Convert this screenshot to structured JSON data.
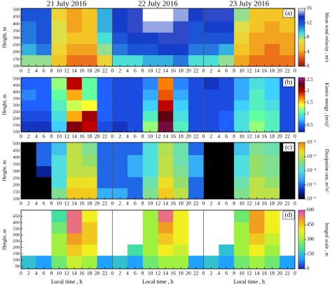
{
  "chart_data": [
    {
      "type": "heatmap",
      "panel_label": "(a)",
      "day_labels": [
        "21 July 2016",
        "22 July 2016",
        "23 July 2016"
      ],
      "ylabel": "Height, m",
      "zlabel": "Mean wind velocity , m/s",
      "xlim": [
        0,
        72
      ],
      "xticks": [
        0,
        2,
        4,
        6,
        8,
        10,
        12,
        14,
        16,
        18,
        20,
        22,
        {
          "value": 24,
          "label": "0"
        },
        {
          "value": 26,
          "label": "2"
        },
        {
          "value": 28,
          "label": "4"
        },
        {
          "value": 30,
          "label": "6"
        },
        {
          "value": 32,
          "label": "8"
        },
        {
          "value": 34,
          "label": "10"
        },
        {
          "value": 36,
          "label": "12"
        },
        {
          "value": 38,
          "label": "14"
        },
        {
          "value": 40,
          "label": "16"
        },
        {
          "value": 42,
          "label": "18"
        },
        {
          "value": 44,
          "label": "20"
        },
        {
          "value": 46,
          "label": "22"
        },
        {
          "value": 48,
          "label": "0"
        },
        {
          "value": 50,
          "label": "2"
        },
        {
          "value": 52,
          "label": "4"
        },
        {
          "value": 54,
          "label": "6"
        },
        {
          "value": 56,
          "label": "8"
        },
        {
          "value": 58,
          "label": "10"
        },
        {
          "value": 60,
          "label": "12"
        },
        {
          "value": 62,
          "label": "14"
        },
        {
          "value": 64,
          "label": "16"
        },
        {
          "value": 66,
          "label": "18"
        },
        {
          "value": 68,
          "label": "20"
        },
        {
          "value": 70,
          "label": "22"
        },
        {
          "value": 72,
          "label": "0"
        }
      ],
      "ylim": [
        100,
        510
      ],
      "yticks": [
        100,
        150,
        200,
        250,
        300,
        350,
        400,
        450,
        500
      ],
      "x": [
        2,
        6,
        10,
        14,
        18,
        22,
        26,
        30,
        34,
        38,
        42,
        46,
        50,
        54,
        58,
        62,
        66,
        70
      ],
      "y": [
        140,
        220,
        300,
        380,
        460
      ],
      "z": [
        [
          8,
          8,
          5,
          3,
          3,
          6,
          9,
          9,
          10,
          10,
          11,
          9,
          9,
          8,
          4,
          3,
          3,
          3
        ],
        [
          10,
          11,
          6,
          4,
          4,
          8,
          11,
          12,
          12,
          13,
          13,
          11,
          11,
          10,
          5,
          4,
          3,
          4
        ],
        [
          11,
          12,
          7,
          5,
          5,
          9,
          12,
          13,
          13,
          14,
          14,
          12,
          12,
          12,
          6,
          4,
          4,
          4
        ],
        [
          11,
          12,
          7,
          4,
          5,
          10,
          13,
          14,
          15,
          15,
          14,
          12,
          13,
          13,
          7,
          5,
          4,
          5
        ],
        [
          12,
          12,
          6,
          4,
          5,
          10,
          13,
          14,
          16,
          16,
          15,
          13,
          14,
          14,
          8,
          5,
          5,
          5
        ]
      ],
      "zlim": [
        0,
        16
      ],
      "zticks": [
        0,
        4,
        8,
        12,
        16
      ],
      "zscale": "linear",
      "colors": [
        "#8b1a00",
        "#e8501a",
        "#f5c020",
        "#e8e040",
        "#40e0e0",
        "#2060e0",
        "#1030c0",
        "#ffffff"
      ]
    },
    {
      "type": "heatmap",
      "panel_label": "(b)",
      "ylabel": "Height, m",
      "zlabel": "Kinetic energy , (m/s)²",
      "xlim": [
        0,
        72
      ],
      "xticks": [
        0,
        2,
        4,
        6,
        8,
        10,
        12,
        14,
        16,
        18,
        20,
        22,
        {
          "value": 24,
          "label": "0"
        },
        {
          "value": 26,
          "label": "2"
        },
        {
          "value": 28,
          "label": "4"
        },
        {
          "value": 30,
          "label": "6"
        },
        {
          "value": 32,
          "label": "8"
        },
        {
          "value": 34,
          "label": "10"
        },
        {
          "value": 36,
          "label": "12"
        },
        {
          "value": 38,
          "label": "14"
        },
        {
          "value": 40,
          "label": "16"
        },
        {
          "value": 42,
          "label": "18"
        },
        {
          "value": 44,
          "label": "20"
        },
        {
          "value": 46,
          "label": "22"
        },
        {
          "value": 48,
          "label": "0"
        },
        {
          "value": 50,
          "label": "2"
        },
        {
          "value": 52,
          "label": "4"
        },
        {
          "value": 54,
          "label": "6"
        },
        {
          "value": 56,
          "label": "8"
        },
        {
          "value": 58,
          "label": "10"
        },
        {
          "value": 60,
          "label": "12"
        },
        {
          "value": 62,
          "label": "14"
        },
        {
          "value": 64,
          "label": "16"
        },
        {
          "value": 66,
          "label": "18"
        },
        {
          "value": 68,
          "label": "20"
        },
        {
          "value": 70,
          "label": "22"
        },
        {
          "value": 72,
          "label": "0"
        }
      ],
      "ylim": [
        100,
        510
      ],
      "yticks": [
        100,
        150,
        200,
        250,
        300,
        350,
        400,
        450,
        500
      ],
      "x": [
        2,
        6,
        10,
        14,
        18,
        22,
        26,
        30,
        34,
        38,
        42,
        46,
        50,
        54,
        58,
        62,
        66,
        70
      ],
      "y": [
        140,
        220,
        300,
        380,
        460
      ],
      "z": [
        [
          0.3,
          0.3,
          0.8,
          2.2,
          2.0,
          0.4,
          0.3,
          0.4,
          1.2,
          2.4,
          1.0,
          0.4,
          0.4,
          0.5,
          0.9,
          1.2,
          1.0,
          0.4
        ],
        [
          0.4,
          0.4,
          0.9,
          1.6,
          2.1,
          0.5,
          0.4,
          0.4,
          1.0,
          2.3,
          0.9,
          0.4,
          0.4,
          0.5,
          0.9,
          1.1,
          1.0,
          0.4
        ],
        [
          0.5,
          0.5,
          1.0,
          1.3,
          1.4,
          0.5,
          0.4,
          0.4,
          0.8,
          2.0,
          0.8,
          0.4,
          0.4,
          0.4,
          0.8,
          1.0,
          0.9,
          0.4
        ],
        [
          0.6,
          0.5,
          1.1,
          1.6,
          1.1,
          0.5,
          0.4,
          0.4,
          0.7,
          1.8,
          0.7,
          0.4,
          0.4,
          0.4,
          0.7,
          1.0,
          0.8,
          0.4
        ],
        [
          0.5,
          0.5,
          1.2,
          2.0,
          1.1,
          0.5,
          0.4,
          0.4,
          0.6,
          1.7,
          0.6,
          0.4,
          0.3,
          0.4,
          0.7,
          0.9,
          0.8,
          0.4
        ]
      ],
      "zlim": [
        0.2,
        2.6
      ],
      "zticks": [
        0.5,
        1,
        1.5,
        2,
        2.5
      ],
      "zscale": "linear",
      "colors": [
        "#1020a0",
        "#2060ff",
        "#40d0ff",
        "#60ffa0",
        "#ffff30",
        "#ff8000",
        "#c00000",
        "#600010",
        "#a020a0"
      ]
    },
    {
      "type": "heatmap",
      "panel_label": "(c)",
      "ylabel": "Height, m",
      "zlabel": "Dissipation rate, m²/s³",
      "xlim": [
        0,
        72
      ],
      "xticks": [
        0,
        2,
        4,
        6,
        8,
        10,
        12,
        14,
        16,
        18,
        20,
        22,
        {
          "value": 24,
          "label": "0"
        },
        {
          "value": 26,
          "label": "2"
        },
        {
          "value": 28,
          "label": "4"
        },
        {
          "value": 30,
          "label": "6"
        },
        {
          "value": 32,
          "label": "8"
        },
        {
          "value": 34,
          "label": "10"
        },
        {
          "value": 36,
          "label": "12"
        },
        {
          "value": 38,
          "label": "14"
        },
        {
          "value": 40,
          "label": "16"
        },
        {
          "value": 42,
          "label": "18"
        },
        {
          "value": 44,
          "label": "20"
        },
        {
          "value": 46,
          "label": "22"
        },
        {
          "value": 48,
          "label": "0"
        },
        {
          "value": 50,
          "label": "2"
        },
        {
          "value": 52,
          "label": "4"
        },
        {
          "value": 54,
          "label": "6"
        },
        {
          "value": 56,
          "label": "8"
        },
        {
          "value": 58,
          "label": "10"
        },
        {
          "value": 60,
          "label": "12"
        },
        {
          "value": 62,
          "label": "14"
        },
        {
          "value": 64,
          "label": "16"
        },
        {
          "value": 66,
          "label": "18"
        },
        {
          "value": 68,
          "label": "20"
        },
        {
          "value": 70,
          "label": "22"
        },
        {
          "value": 72,
          "label": "0"
        }
      ],
      "ylim": [
        100,
        510
      ],
      "yticks": [
        100,
        150,
        200,
        250,
        300,
        350,
        400,
        450,
        500
      ],
      "x": [
        2,
        6,
        10,
        14,
        18,
        22,
        26,
        30,
        34,
        38,
        42,
        46,
        50,
        54,
        58,
        62,
        66,
        70
      ],
      "y": [
        140,
        220,
        300,
        380,
        460
      ],
      "z": [
        [
          1e-06,
          1e-06,
          0.0003,
          0.003,
          0.003,
          3e-05,
          3e-05,
          1e-05,
          0.0003,
          0.003,
          0.001,
          1e-05,
          1e-06,
          1e-06,
          0.0003,
          0.001,
          0.001,
          1e-06
        ],
        [
          1e-06,
          1e-06,
          0.0001,
          0.002,
          0.002,
          1e-05,
          1e-05,
          1e-05,
          0.0002,
          0.002,
          0.0005,
          1e-05,
          1e-06,
          1e-06,
          0.0002,
          0.001,
          0.0005,
          1e-06
        ],
        [
          1e-06,
          3e-06,
          0.0001,
          0.001,
          0.001,
          1e-05,
          1e-05,
          3e-05,
          0.0001,
          0.001,
          0.0003,
          3e-05,
          1e-06,
          1e-06,
          0.0001,
          0.0005,
          0.0003,
          1e-06
        ],
        [
          1e-06,
          1e-05,
          0.0001,
          0.001,
          0.0005,
          1e-05,
          1e-05,
          3e-05,
          0.0001,
          0.001,
          0.0002,
          3e-05,
          1e-06,
          1e-06,
          0.0001,
          0.0005,
          0.0003,
          1e-06
        ],
        [
          1e-06,
          1e-05,
          5e-05,
          0.001,
          0.0003,
          1e-05,
          1e-05,
          1e-05,
          0.0001,
          0.0008,
          0.0002,
          1e-05,
          1e-06,
          1e-06,
          5e-05,
          0.0003,
          0.0002,
          1e-06
        ]
      ],
      "zlim": [
        1e-06,
        0.01
      ],
      "zticks": [
        {
          "value": 1e-06,
          "label": "10⁻⁶"
        },
        {
          "value": 1e-05,
          "label": "10⁻⁵"
        },
        {
          "value": 0.0001,
          "label": "10⁻⁴"
        },
        {
          "value": 0.001,
          "label": "10⁻³"
        },
        {
          "value": 0.01,
          "label": "10⁻²"
        }
      ],
      "zscale": "log",
      "colors": [
        "#000000",
        "#1030d0",
        "#30a0ff",
        "#50e0e0",
        "#90e070",
        "#f0e020",
        "#f08010"
      ]
    },
    {
      "type": "heatmap",
      "panel_label": "(d)",
      "ylabel": "Height, m",
      "zlabel": "Integral scale , m",
      "xlabel": "Local time , h",
      "xlim": [
        0,
        72
      ],
      "xticks": [
        0,
        2,
        4,
        6,
        8,
        10,
        12,
        14,
        16,
        18,
        20,
        22,
        {
          "value": 24,
          "label": "0"
        },
        {
          "value": 26,
          "label": "2"
        },
        {
          "value": 28,
          "label": "4"
        },
        {
          "value": 30,
          "label": "6"
        },
        {
          "value": 32,
          "label": "8"
        },
        {
          "value": 34,
          "label": "10"
        },
        {
          "value": 36,
          "label": "12"
        },
        {
          "value": 38,
          "label": "14"
        },
        {
          "value": 40,
          "label": "16"
        },
        {
          "value": 42,
          "label": "18"
        },
        {
          "value": 44,
          "label": "20"
        },
        {
          "value": 46,
          "label": "22"
        },
        {
          "value": 48,
          "label": "0"
        },
        {
          "value": 50,
          "label": "2"
        },
        {
          "value": 52,
          "label": "4"
        },
        {
          "value": 54,
          "label": "6"
        },
        {
          "value": 56,
          "label": "8"
        },
        {
          "value": 58,
          "label": "10"
        },
        {
          "value": 60,
          "label": "12"
        },
        {
          "value": 62,
          "label": "14"
        },
        {
          "value": 64,
          "label": "16"
        },
        {
          "value": 66,
          "label": "18"
        },
        {
          "value": 68,
          "label": "20"
        },
        {
          "value": 70,
          "label": "22"
        },
        {
          "value": 72,
          "label": "0"
        }
      ],
      "ylim": [
        30,
        500
      ],
      "yticks": [
        50,
        100,
        150,
        200,
        250,
        300,
        350,
        400,
        450
      ],
      "x": [
        2,
        6,
        10,
        14,
        18,
        22,
        26,
        30,
        34,
        38,
        42,
        46,
        50,
        54,
        58,
        62,
        66,
        70
      ],
      "y": [
        90,
        180,
        270,
        360,
        450
      ],
      "z": [
        [
          150,
          100,
          250,
          350,
          300,
          100,
          150,
          100,
          250,
          300,
          300,
          100,
          150,
          100,
          250,
          300,
          250,
          100
        ],
        [
          null,
          null,
          300,
          450,
          400,
          null,
          null,
          200,
          300,
          400,
          350,
          null,
          null,
          150,
          300,
          400,
          300,
          null
        ],
        [
          null,
          null,
          300,
          500,
          450,
          null,
          null,
          null,
          300,
          450,
          400,
          null,
          null,
          null,
          300,
          450,
          350,
          null
        ],
        [
          null,
          null,
          250,
          550,
          450,
          null,
          null,
          null,
          300,
          500,
          400,
          null,
          null,
          null,
          300,
          500,
          400,
          null
        ],
        [
          null,
          null,
          200,
          550,
          400,
          null,
          null,
          null,
          300,
          550,
          400,
          null,
          null,
          null,
          250,
          500,
          400,
          null
        ]
      ],
      "zlim": [
        0,
        600
      ],
      "zticks": [
        0,
        150,
        300,
        450,
        600
      ],
      "zscale": "linear",
      "colors": [
        "#2020c0",
        "#20a0ff",
        "#40e0a0",
        "#a0f040",
        "#f0f020",
        "#f0a020",
        "#e040e0"
      ]
    }
  ]
}
